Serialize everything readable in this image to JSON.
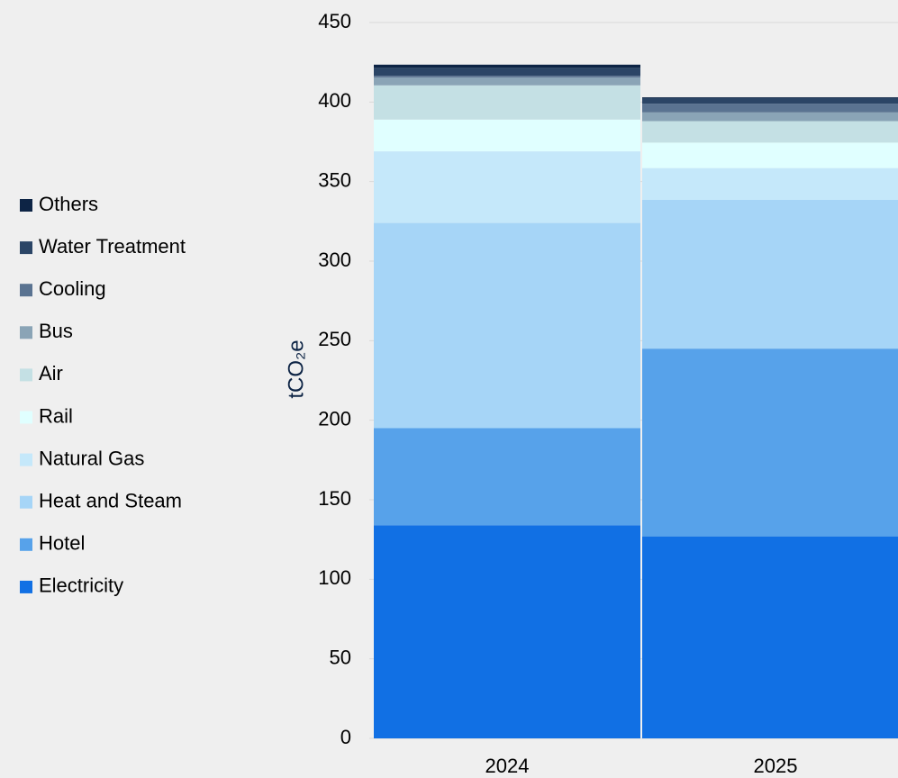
{
  "chart_data": {
    "type": "stacked_bar",
    "y_label": "tCO₂e",
    "categories": [
      "2024",
      "2025"
    ],
    "series": [
      {
        "name": "Electricity",
        "color": "#1170e4",
        "values": [
          134,
          127
        ]
      },
      {
        "name": "Hotel",
        "color": "#57a2ea",
        "values": [
          61,
          118
        ]
      },
      {
        "name": "Heat and Steam",
        "color": "#a6d5f7",
        "values": [
          129,
          93.5
        ]
      },
      {
        "name": "Natural Gas",
        "color": "#c5e8fa",
        "values": [
          45,
          20
        ]
      },
      {
        "name": "Rail",
        "color": "#e0ffff",
        "values": [
          20,
          16
        ]
      },
      {
        "name": "Air",
        "color": "#c4e0e4",
        "values": [
          21.5,
          13.5
        ]
      },
      {
        "name": "Bus",
        "color": "#8aa4b6",
        "values": [
          5,
          5.5
        ]
      },
      {
        "name": "Cooling",
        "color": "#5a7391",
        "values": [
          1,
          5.5
        ]
      },
      {
        "name": "Water Treatment",
        "color": "#2b4566",
        "values": [
          5,
          3.5
        ]
      },
      {
        "name": "Others",
        "color": "#0d2445",
        "values": [
          2,
          0.5
        ]
      }
    ],
    "ylim": [
      0,
      450
    ],
    "yticks": [
      0,
      50,
      100,
      150,
      200,
      250,
      300,
      350,
      400,
      450
    ],
    "grid": true,
    "legend": "left"
  }
}
